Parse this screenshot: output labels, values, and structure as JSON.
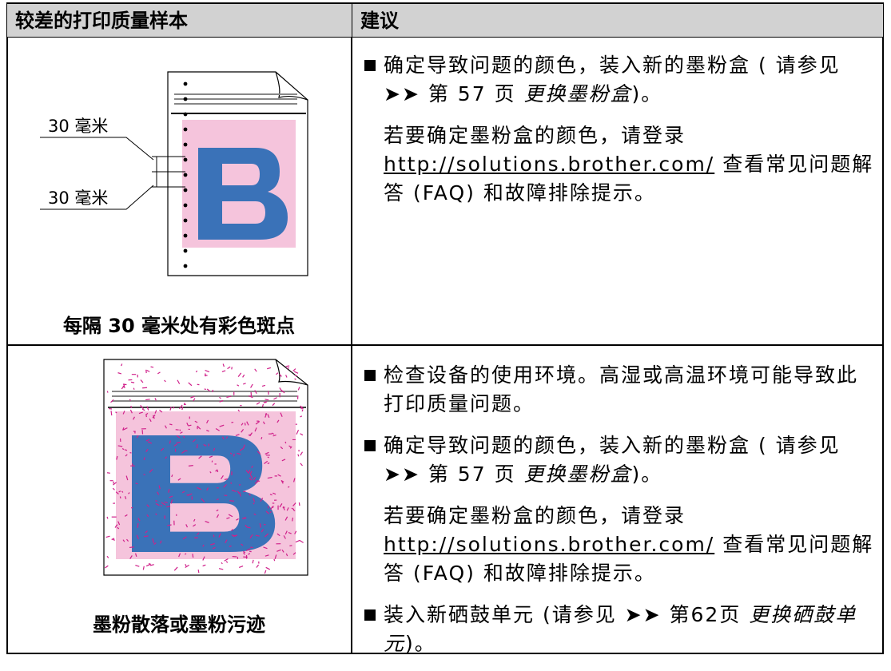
{
  "header": {
    "sample": "较差的打印质量样本",
    "advice": "建议"
  },
  "rows": [
    {
      "sample": {
        "labels": [
          "30 毫米",
          "30 毫米"
        ],
        "caption": "每隔 30 毫米处有彩色斑点"
      },
      "advice": [
        {
          "text": "确定导致问题的颜色，装入新的墨粉盒 ( 请参见",
          "arrow": "➤➤",
          "page": "第 57 页",
          "title": "更换墨粉盒",
          "end": ")。"
        },
        {
          "text": "若要确定墨粉盒的颜色，请登录",
          "link": "http://solutions.brother.com/",
          "end": "查看常见问题解答 (FAQ) 和故障排除提示。"
        }
      ]
    },
    {
      "sample": {
        "caption": "墨粉散落或墨粉污迹"
      },
      "advice": [
        {
          "text": "检查设备的使用环境。高湿或高温环境可能导致此打印质量问题。"
        },
        {
          "text": "确定导致问题的颜色，装入新的墨粉盒 ( 请参见",
          "arrow": "➤➤",
          "page": "第 57 页",
          "title": "更换墨粉盒",
          "end": ")。"
        },
        {
          "text": "若要确定墨粉盒的颜色，请登录",
          "link": "http://solutions.brother.com/",
          "end": "查看常见问题解答 (FAQ) 和故障排除提示。"
        },
        {
          "text": "装入新硒鼓单元 (请参见",
          "arrow": "➤➤",
          "page": "第62页",
          "title": "更换硒鼓单元",
          "end": ")。"
        }
      ]
    }
  ]
}
